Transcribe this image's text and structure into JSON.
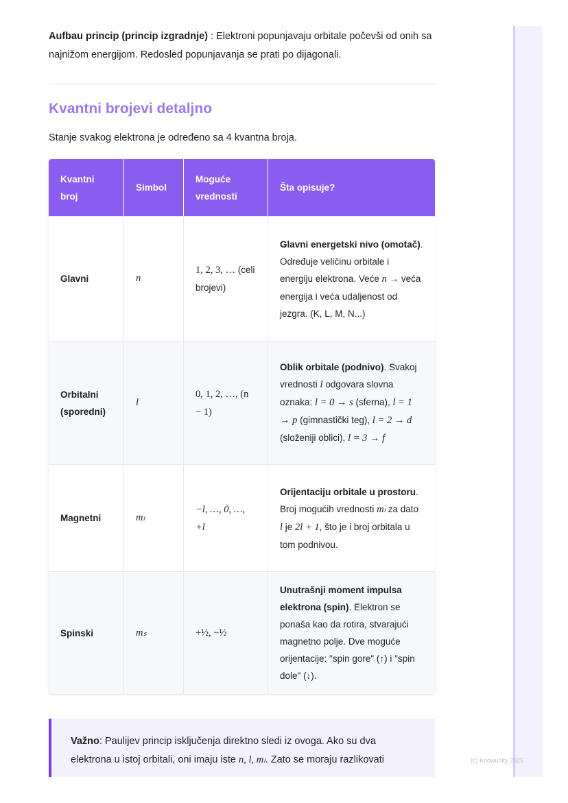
{
  "intro": {
    "bold": "Aufbau princip (princip izgradnje)",
    "text": " : Elektroni popunjavaju orbitale počevši od onih sa najnižom energijom. Redosled popunjavanja se prati po dijagonali."
  },
  "section": {
    "title": "Kvantni brojevi detaljno",
    "lead": "Stanje svakog elektrona je određeno sa 4 kvantna broja."
  },
  "table": {
    "headers": [
      "Kvantni broj",
      "Simbol",
      "Moguće vrednosti",
      "Šta opisuje?"
    ],
    "rows": [
      {
        "name": "Glavni",
        "symbol": "n",
        "values": [
          [
            "1, 2, 3, …",
            "mr"
          ],
          [
            " (celi brojevi)",
            ""
          ]
        ],
        "desc": [
          [
            "Glavni energetski nivo (omotač)",
            "b"
          ],
          [
            ". Određuje veličinu orbitale i energiju elektrona. Veće ",
            ""
          ],
          [
            "n",
            "m"
          ],
          [
            " → veća energija i veća udaljenost od jezgra. (K, L, M, N...)",
            ""
          ]
        ]
      },
      {
        "name": "Orbitalni (sporedni)",
        "symbol": "l",
        "values": [
          [
            "0, 1, 2, …, (n − 1)",
            "mr"
          ]
        ],
        "desc": [
          [
            "Oblik orbitale (podnivo)",
            "b"
          ],
          [
            ". Svakoj vrednosti ",
            ""
          ],
          [
            "l",
            "m"
          ],
          [
            " odgovara slovna oznaka: ",
            ""
          ],
          [
            "l = 0 → s",
            "m"
          ],
          [
            " (sferna), ",
            ""
          ],
          [
            "l = 1 → p",
            "m"
          ],
          [
            " (gimnastički teg), ",
            ""
          ],
          [
            "l = 2 → d",
            "m"
          ],
          [
            " (složeniji oblici), ",
            ""
          ],
          [
            "l = 3 → f",
            "m"
          ]
        ]
      },
      {
        "name": "Magnetni",
        "symbol": "mₗ",
        "values": [
          [
            "−l, …, 0, …, +l",
            "m"
          ]
        ],
        "desc": [
          [
            "Orijentaciju orbitale u prostoru",
            "b"
          ],
          [
            ". Broj mogućih vrednosti ",
            ""
          ],
          [
            "mₗ",
            "m"
          ],
          [
            " za dato ",
            ""
          ],
          [
            "l",
            "m"
          ],
          [
            " je ",
            ""
          ],
          [
            "2l + 1",
            "m"
          ],
          [
            ", što je i broj orbitala u tom podnivou.",
            ""
          ]
        ]
      },
      {
        "name": "Spinski",
        "symbol": "mₛ",
        "values": [
          [
            "+½, −½",
            "mr"
          ]
        ],
        "desc": [
          [
            "Unutrašnji moment impulsa elektrona (spin)",
            "b"
          ],
          [
            ". Elektron se ponaša kao da rotira, stvarajući magnetno polje. Dve moguće orijentacije: \"spin gore\" (↑) i \"spin dole\" (↓).",
            ""
          ]
        ]
      }
    ]
  },
  "note": {
    "bold": "Važno",
    "text1": ": Paulijev princip isključenja direktno sledi iz ovoga. Ako su dva elektrona u istoj orbitali, oni imaju iste ",
    "math": "n, l, mₗ",
    "text2": ". Zato se moraju razlikovati"
  },
  "footer": {
    "copyright": "(c) Knowunity 2025"
  }
}
